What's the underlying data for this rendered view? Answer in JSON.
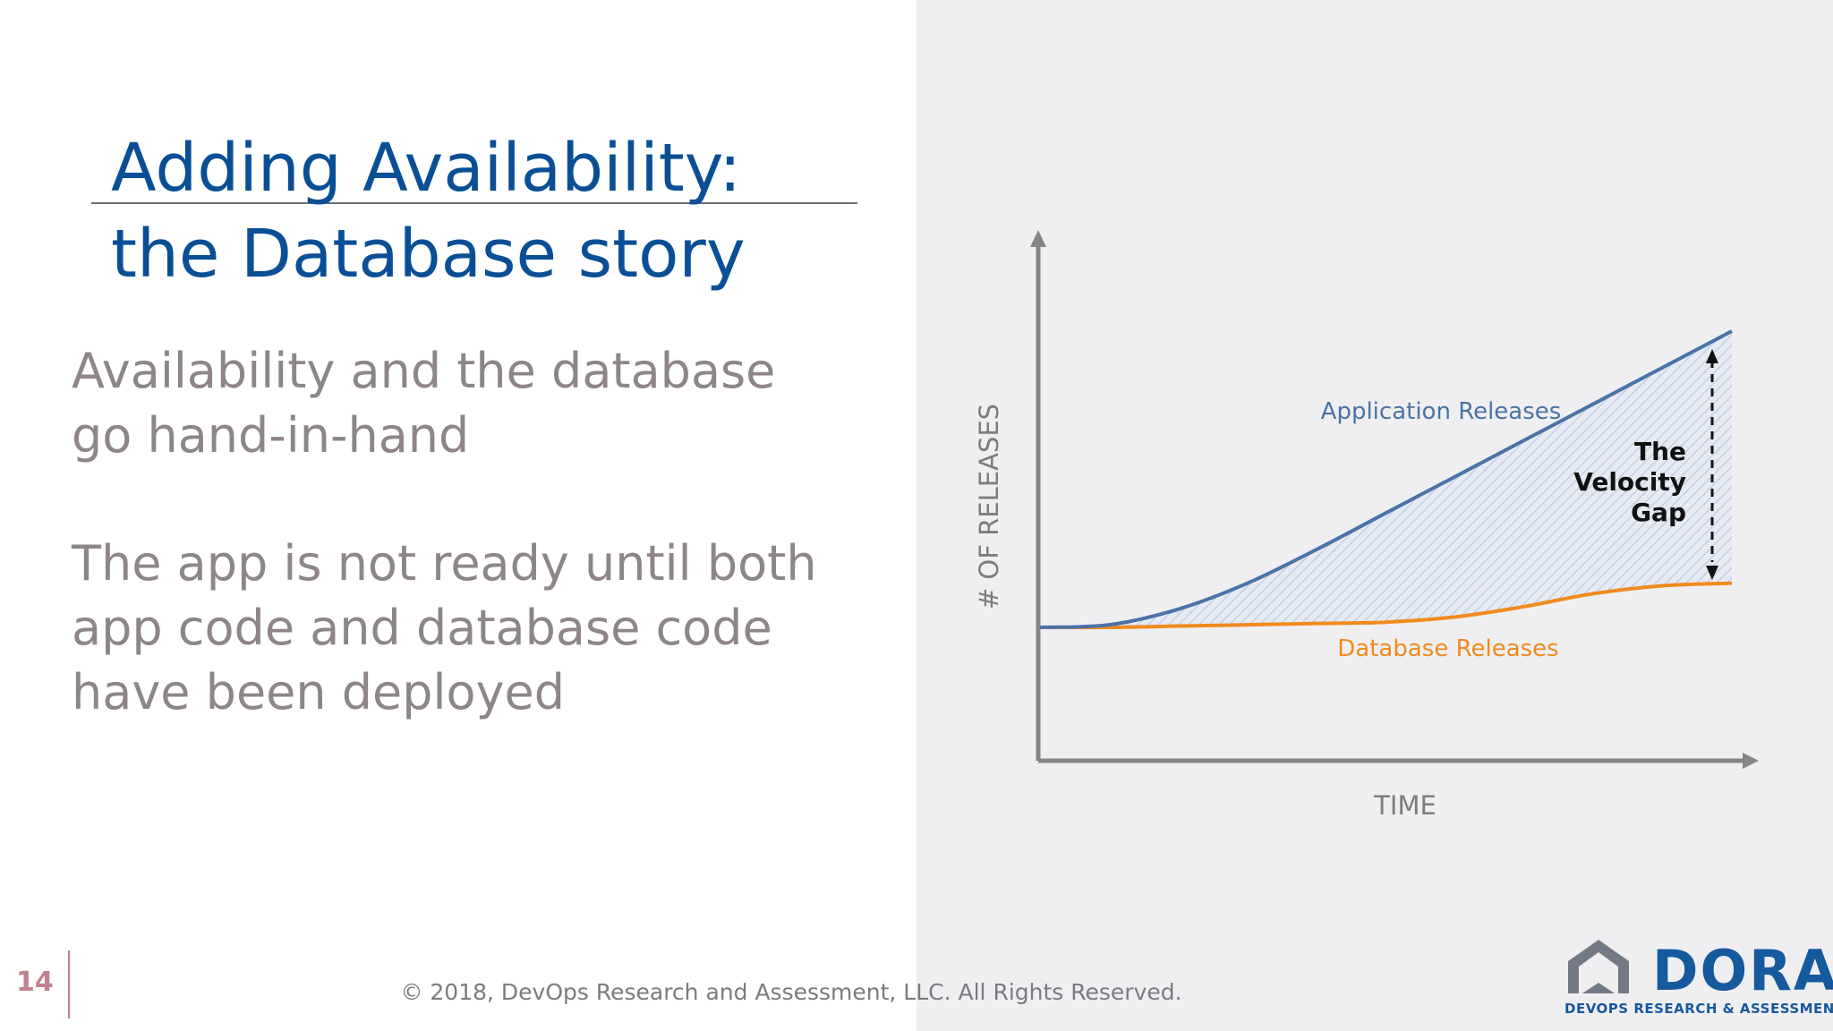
{
  "slide": {
    "title_lines": [
      "Adding Availability:",
      "the Database story"
    ],
    "paragraph1": [
      "Availability and the database",
      "go hand-in-hand"
    ],
    "paragraph2": [
      "The app is not ready until both",
      "app code and database code",
      "have been deployed"
    ],
    "page_number": "14",
    "footer": "© 2018, DevOps Research and Assessment, LLC. All Rights Reserved."
  },
  "logo": {
    "word": "DORA",
    "subtitle": "DEVOPS RESEARCH & ASSESSMENT"
  },
  "chart_data": {
    "type": "area",
    "title": "",
    "xlabel": "TIME",
    "ylabel": "# OF RELEASES",
    "x": [
      0,
      10,
      20,
      30,
      40,
      50,
      60,
      70,
      80,
      90,
      100
    ],
    "series": [
      {
        "name": "Application Releases",
        "color": "#4a73a6",
        "values": [
          0,
          1,
          7,
          17,
          30,
          44,
          58,
          72,
          86,
          100,
          114
        ]
      },
      {
        "name": "Database Releases",
        "color": "#f18a1e",
        "values": [
          0,
          0,
          0.5,
          1,
          1.5,
          2,
          4,
          8,
          13,
          16,
          17
        ]
      }
    ],
    "annotation": [
      "The",
      "Velocity",
      "Gap"
    ],
    "ylim": [
      0,
      130
    ],
    "xlim": [
      0,
      105
    ],
    "grid": false,
    "legend": "inline"
  }
}
